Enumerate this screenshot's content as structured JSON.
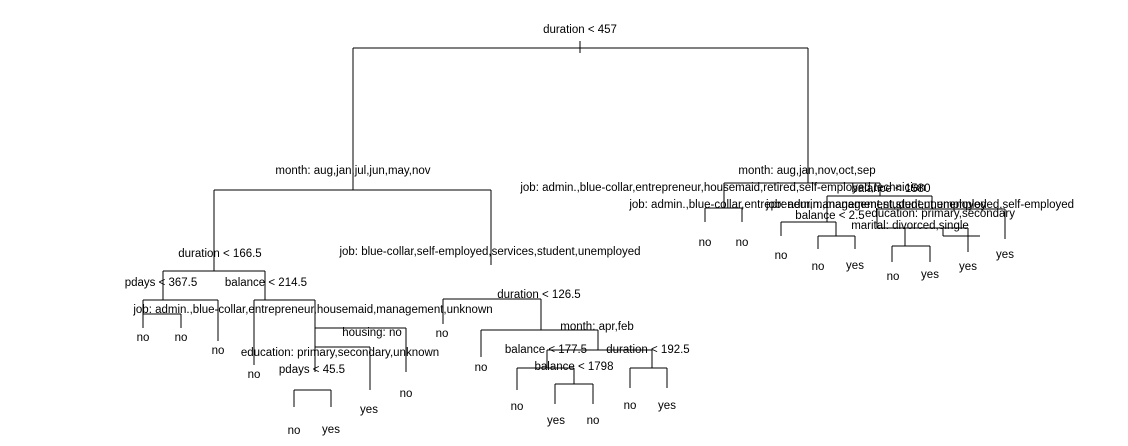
{
  "tree": {
    "root_split": "duration < 457",
    "left_branch": {
      "split": "month: aug,jan,jul,jun,may,nov",
      "left": {
        "split": "duration < 166.5",
        "left": {
          "split": "pdays < 367.5",
          "left": {
            "split": "job: admin.,blue-collar,entrepreneur,housemaid,management,unknown",
            "leaves": [
              "no",
              "no"
            ]
          },
          "right_leaf": "no"
        },
        "right": {
          "split": "balance < 214.5",
          "left_leaf": "no",
          "right": {
            "split": "housing: no",
            "left": {
              "split": "education: primary,secondary,unknown",
              "left_leaf": "no",
              "right": {
                "split": "pdays < 45.5",
                "leaves": [
                  "no",
                  "yes"
                ],
                "right_leaf": "yes"
              }
            },
            "right_leaf": "no"
          }
        }
      },
      "right": {
        "split": "job: blue-collar,self-employed,services,student,unemployed",
        "left_leaf": "no",
        "right": {
          "split": "duration < 126.5",
          "left_leaf": "no",
          "right": {
            "split": "month: apr,feb",
            "left": {
              "split": "balance < 177.5",
              "left_leaf": "no",
              "right": {
                "split": "balance < 1798",
                "leaves": [
                  "yes",
                  "no"
                ]
              }
            },
            "right": {
              "split": "duration < 192.5",
              "leaves": [
                "no",
                "yes"
              ]
            }
          }
        }
      }
    },
    "right_branch": {
      "split": "month: aug,jan,nov,oct,sep",
      "overlapping_labels": [
        "job: admin.,blue-collar,entrepreneur,housemaid,retired,self-employed,technician",
        "job: admin.,blue-collar,entrepreneur,management,student,unemployed",
        "balance < 1580",
        "balance < 2.5",
        "education: primary,secondary",
        "marital: divorced,single",
        "job: admin.,management,student,unemployed,self-employed"
      ],
      "leaves": [
        "no",
        "no",
        "no",
        "no",
        "yes",
        "no",
        "yes",
        "yes",
        "yes"
      ]
    }
  }
}
